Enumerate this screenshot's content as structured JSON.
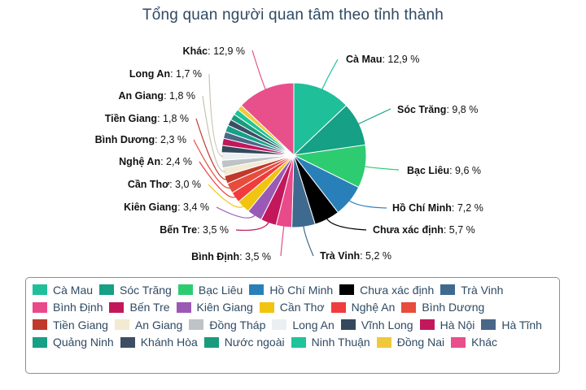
{
  "title": "Tổng quan người quan tâm theo tỉnh thành",
  "chart_data": {
    "type": "pie",
    "title": "Tổng quan người quan tâm theo tỉnh thành",
    "value_suffix": " %",
    "legend_position": "bottom",
    "slices": [
      {
        "name": "Cà Mau",
        "value": 12.9,
        "label": "12,9 %",
        "color": "#1fbf9a"
      },
      {
        "name": "Sóc Trăng",
        "value": 9.8,
        "label": "9,8 %",
        "color": "#16a085"
      },
      {
        "name": "Bạc Liêu",
        "value": 9.6,
        "label": "9,6 %",
        "color": "#2ecc71"
      },
      {
        "name": "Hồ Chí Minh",
        "value": 7.2,
        "label": "7,2 %",
        "color": "#2980b9"
      },
      {
        "name": "Chưa xác định",
        "value": 5.7,
        "label": "5,7 %",
        "color": "#000000"
      },
      {
        "name": "Trà Vinh",
        "value": 5.2,
        "label": "5,2 %",
        "color": "#3e6a8f"
      },
      {
        "name": "Bình Định",
        "value": 3.5,
        "label": "3,5 %",
        "color": "#e84a8a"
      },
      {
        "name": "Bến Tre",
        "value": 3.5,
        "label": "3,5 %",
        "color": "#c2185b"
      },
      {
        "name": "Kiên Giang",
        "value": 3.4,
        "label": "3,4 %",
        "color": "#9b59b6"
      },
      {
        "name": "Cần Thơ",
        "value": 3.0,
        "label": "3,0 %",
        "color": "#f1c40f"
      },
      {
        "name": "Nghệ An",
        "value": 2.4,
        "label": "2,4 %",
        "color": "#f03c3c"
      },
      {
        "name": "Bình Dương",
        "value": 2.3,
        "label": "2,3 %",
        "color": "#e74c3c"
      },
      {
        "name": "Tiền Giang",
        "value": 1.8,
        "label": "1,8 %",
        "color": "#c0392b"
      },
      {
        "name": "An Giang",
        "value": 1.8,
        "label": "1,8 %",
        "color": "#f2ead2"
      },
      {
        "name": "Đồng Tháp",
        "value": 1.7,
        "label": "",
        "color": "#bdc3c7"
      },
      {
        "name": "Long An",
        "value": 1.7,
        "label": "1,7 %",
        "color": "#eceff1"
      },
      {
        "name": "Vĩnh Long",
        "value": 1.6,
        "label": "",
        "color": "#34495e"
      },
      {
        "name": "Hà Nội",
        "value": 1.6,
        "label": "",
        "color": "#c2185b"
      },
      {
        "name": "Hà Tĩnh",
        "value": 1.5,
        "label": "",
        "color": "#4a6789"
      },
      {
        "name": "Quảng Ninh",
        "value": 1.5,
        "label": "",
        "color": "#16a085"
      },
      {
        "name": "Khánh Hòa",
        "value": 1.4,
        "label": "",
        "color": "#3d4e64"
      },
      {
        "name": "Nước ngoài",
        "value": 1.4,
        "label": "",
        "color": "#1a9c7c"
      },
      {
        "name": "Ninh Thuận",
        "value": 1.3,
        "label": "",
        "color": "#1fc49a"
      },
      {
        "name": "Đồng Nai",
        "value": 1.2,
        "label": "",
        "color": "#f0c93a"
      },
      {
        "name": "Khác",
        "value": 12.9,
        "label": "12,9 %",
        "color": "#e8508c"
      }
    ]
  }
}
